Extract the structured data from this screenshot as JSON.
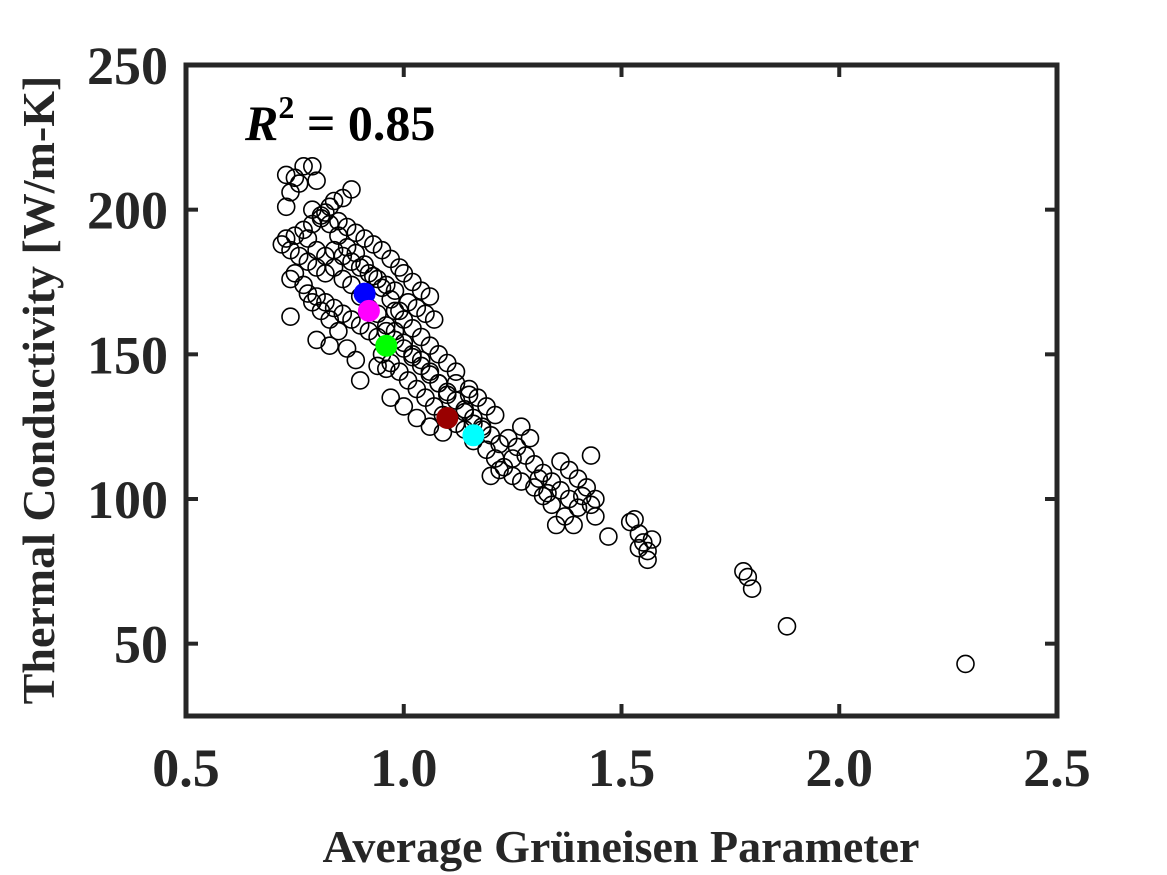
{
  "chart_data": {
    "type": "scatter",
    "title": "",
    "xlabel": "Average Grüneisen Parameter",
    "ylabel": "Thermal Conductivity [W/m-K]",
    "xlim": [
      0.5,
      2.5
    ],
    "ylim": [
      25,
      250
    ],
    "xticks": [
      0.5,
      1.0,
      1.5,
      2.0,
      2.5
    ],
    "xtick_labels": [
      "0.5",
      "1.0",
      "1.5",
      "2.0",
      "2.5"
    ],
    "yticks": [
      50,
      100,
      150,
      200,
      250
    ],
    "ytick_labels": [
      "50",
      "100",
      "150",
      "200",
      "250"
    ],
    "grid": false,
    "legend": "none",
    "annotation": {
      "r_symbol": "R",
      "superscript": "2",
      "equation": " = 0.85"
    },
    "series": [
      {
        "marker": "open-circle",
        "color": "#000000",
        "points": [
          [
            0.73,
            212
          ],
          [
            0.75,
            211
          ],
          [
            0.76,
            209
          ],
          [
            0.77,
            215
          ],
          [
            0.79,
            215
          ],
          [
            0.8,
            210
          ],
          [
            0.74,
            206
          ],
          [
            0.73,
            201
          ],
          [
            0.88,
            207
          ],
          [
            0.86,
            204
          ],
          [
            0.84,
            203
          ],
          [
            0.83,
            201
          ],
          [
            0.82,
            199
          ],
          [
            0.81,
            197
          ],
          [
            0.79,
            195
          ],
          [
            0.77,
            193
          ],
          [
            0.75,
            191
          ],
          [
            0.73,
            190
          ],
          [
            0.72,
            188
          ],
          [
            0.74,
            186
          ],
          [
            0.76,
            184
          ],
          [
            0.78,
            182
          ],
          [
            0.8,
            180
          ],
          [
            0.82,
            178
          ],
          [
            0.85,
            196
          ],
          [
            0.87,
            194
          ],
          [
            0.89,
            192
          ],
          [
            0.91,
            190
          ],
          [
            0.93,
            188
          ],
          [
            0.95,
            186
          ],
          [
            0.97,
            183
          ],
          [
            0.99,
            180
          ],
          [
            0.84,
            186
          ],
          [
            0.86,
            184
          ],
          [
            0.88,
            182
          ],
          [
            0.9,
            180
          ],
          [
            0.92,
            178
          ],
          [
            0.94,
            176
          ],
          [
            0.96,
            174
          ],
          [
            0.98,
            172
          ],
          [
            0.8,
            170
          ],
          [
            0.82,
            168
          ],
          [
            0.84,
            166
          ],
          [
            0.86,
            164
          ],
          [
            0.88,
            162
          ],
          [
            0.9,
            160
          ],
          [
            0.92,
            158
          ],
          [
            0.94,
            156
          ],
          [
            0.75,
            178
          ],
          [
            0.74,
            176
          ],
          [
            0.77,
            174
          ],
          [
            0.78,
            171
          ],
          [
            0.79,
            168
          ],
          [
            0.81,
            165
          ],
          [
            0.83,
            162
          ],
          [
            0.85,
            158
          ],
          [
            0.74,
            163
          ],
          [
            0.8,
            155
          ],
          [
            0.83,
            153
          ],
          [
            0.87,
            152
          ],
          [
            0.89,
            148
          ],
          [
            0.9,
            141
          ],
          [
            0.94,
            146
          ],
          [
            0.96,
            145
          ],
          [
            1.0,
            178
          ],
          [
            1.02,
            175
          ],
          [
            1.04,
            172
          ],
          [
            1.06,
            170
          ],
          [
            1.01,
            168
          ],
          [
            1.03,
            166
          ],
          [
            1.05,
            164
          ],
          [
            1.07,
            162
          ],
          [
            0.98,
            165
          ],
          [
            1.0,
            162
          ],
          [
            1.02,
            159
          ],
          [
            1.04,
            156
          ],
          [
            1.06,
            153
          ],
          [
            1.08,
            150
          ],
          [
            1.1,
            147
          ],
          [
            1.12,
            144
          ],
          [
            0.96,
            158
          ],
          [
            0.98,
            155
          ],
          [
            1.0,
            152
          ],
          [
            1.02,
            149
          ],
          [
            1.04,
            146
          ],
          [
            1.06,
            143
          ],
          [
            1.08,
            140
          ],
          [
            1.1,
            137
          ],
          [
            0.95,
            150
          ],
          [
            0.97,
            147
          ],
          [
            0.99,
            144
          ],
          [
            1.01,
            141
          ],
          [
            1.03,
            138
          ],
          [
            1.05,
            135
          ],
          [
            1.07,
            132
          ],
          [
            1.09,
            129
          ],
          [
            0.97,
            135
          ],
          [
            1.0,
            132
          ],
          [
            1.03,
            128
          ],
          [
            1.06,
            125
          ],
          [
            1.09,
            123
          ],
          [
            1.12,
            126
          ],
          [
            1.14,
            131
          ],
          [
            1.15,
            136
          ],
          [
            1.12,
            140
          ],
          [
            1.15,
            138
          ],
          [
            1.17,
            135
          ],
          [
            1.19,
            132
          ],
          [
            1.21,
            129
          ],
          [
            1.18,
            125
          ],
          [
            1.2,
            122
          ],
          [
            1.22,
            119
          ],
          [
            1.16,
            128
          ],
          [
            1.14,
            124
          ],
          [
            1.16,
            120
          ],
          [
            1.19,
            117
          ],
          [
            1.21,
            114
          ],
          [
            1.23,
            111
          ],
          [
            1.25,
            108
          ],
          [
            1.27,
            106
          ],
          [
            1.24,
            121
          ],
          [
            1.26,
            118
          ],
          [
            1.28,
            115
          ],
          [
            1.3,
            112
          ],
          [
            1.32,
            109
          ],
          [
            1.34,
            106
          ],
          [
            1.36,
            103
          ],
          [
            1.38,
            100
          ],
          [
            1.27,
            125
          ],
          [
            1.29,
            121
          ],
          [
            1.25,
            114
          ],
          [
            1.22,
            110
          ],
          [
            1.2,
            108
          ],
          [
            1.3,
            104
          ],
          [
            1.32,
            101
          ],
          [
            1.34,
            98
          ],
          [
            1.36,
            113
          ],
          [
            1.38,
            110
          ],
          [
            1.4,
            107
          ],
          [
            1.42,
            104
          ],
          [
            1.44,
            100
          ],
          [
            1.4,
            97
          ],
          [
            1.37,
            94
          ],
          [
            1.35,
            91
          ],
          [
            1.43,
            115
          ],
          [
            1.44,
            94
          ],
          [
            1.39,
            91
          ],
          [
            1.47,
            87
          ],
          [
            1.41,
            101
          ],
          [
            1.43,
            98
          ],
          [
            1.33,
            102
          ],
          [
            1.31,
            107
          ],
          [
            1.52,
            92
          ],
          [
            1.53,
            93
          ],
          [
            1.54,
            88
          ],
          [
            1.55,
            85
          ],
          [
            1.56,
            82
          ],
          [
            1.57,
            86
          ],
          [
            1.54,
            83
          ],
          [
            1.56,
            79
          ],
          [
            1.78,
            75
          ],
          [
            1.79,
            73
          ],
          [
            1.8,
            69
          ],
          [
            1.88,
            56
          ],
          [
            2.29,
            43
          ],
          [
            0.78,
            190
          ],
          [
            0.8,
            186
          ],
          [
            0.82,
            184
          ],
          [
            0.84,
            180
          ],
          [
            0.86,
            176
          ],
          [
            0.88,
            174
          ],
          [
            0.9,
            170
          ],
          [
            0.92,
            166
          ],
          [
            0.94,
            164
          ],
          [
            0.96,
            160
          ],
          [
            0.98,
            158
          ],
          [
            1.0,
            154
          ],
          [
            1.02,
            150
          ],
          [
            1.04,
            148
          ],
          [
            1.06,
            144
          ],
          [
            1.08,
            140
          ],
          [
            1.1,
            136
          ],
          [
            1.12,
            134
          ],
          [
            1.14,
            130
          ],
          [
            1.16,
            126
          ],
          [
            1.18,
            124
          ],
          [
            0.79,
            200
          ],
          [
            0.81,
            198
          ],
          [
            0.83,
            195
          ],
          [
            0.85,
            191
          ],
          [
            0.87,
            187
          ],
          [
            0.89,
            185
          ],
          [
            0.91,
            181
          ],
          [
            0.93,
            177
          ],
          [
            0.95,
            173
          ],
          [
            0.97,
            169
          ],
          [
            0.99,
            165
          ]
        ]
      },
      {
        "marker": "filled-circle",
        "color": "#0000ff",
        "points": [
          [
            0.91,
            171
          ]
        ]
      },
      {
        "marker": "filled-circle",
        "color": "#ff00ff",
        "points": [
          [
            0.92,
            165
          ]
        ]
      },
      {
        "marker": "filled-circle",
        "color": "#00ff00",
        "points": [
          [
            0.96,
            153
          ]
        ]
      },
      {
        "marker": "filled-circle",
        "color": "#990000",
        "points": [
          [
            1.1,
            128
          ]
        ]
      },
      {
        "marker": "filled-circle",
        "color": "#00ffff",
        "points": [
          [
            1.16,
            122
          ]
        ]
      }
    ]
  }
}
